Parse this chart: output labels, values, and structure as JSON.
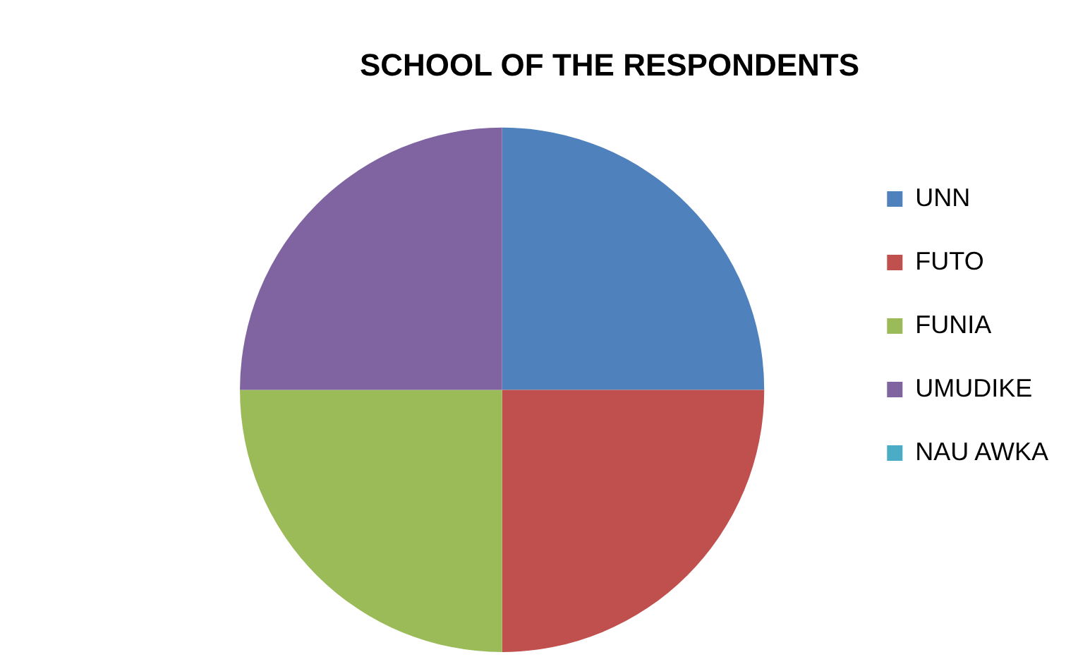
{
  "chart_data": {
    "type": "pie",
    "title": "SCHOOL OF THE RESPONDENTS",
    "categories": [
      "UNN",
      "FUTO",
      "FUNIA",
      "UMUDIKE",
      "NAU AWKA"
    ],
    "values": [
      25,
      25,
      25,
      25,
      0
    ],
    "colors": [
      "#4f81bd",
      "#c0504d",
      "#9bbb59",
      "#8064a2",
      "#4bacc6"
    ],
    "legend": "right"
  }
}
